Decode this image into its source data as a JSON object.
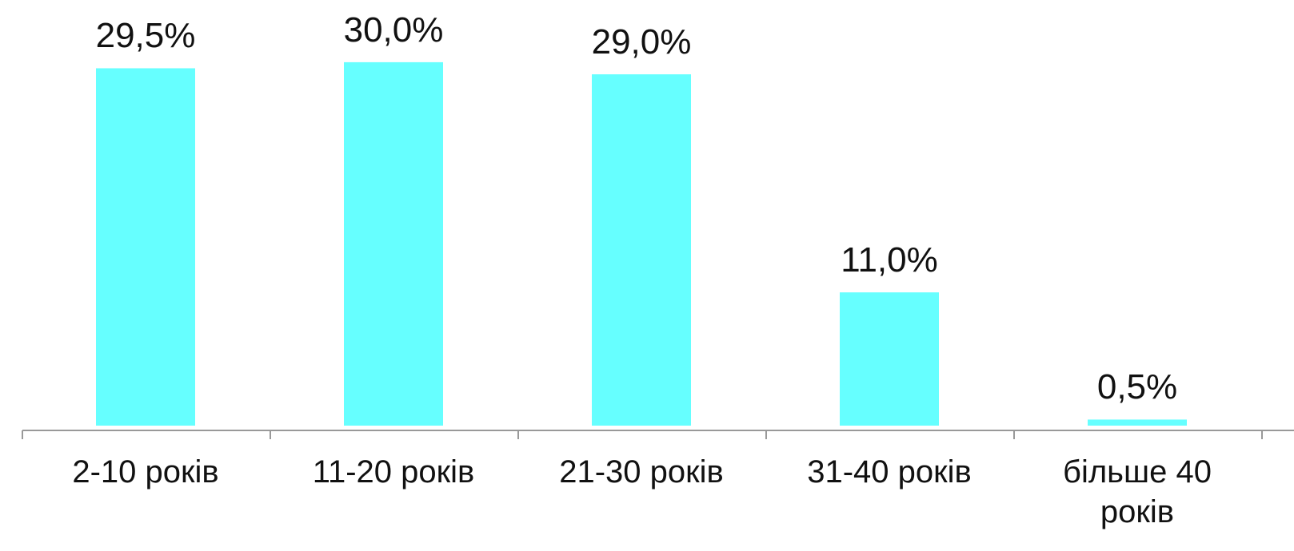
{
  "chart_data": {
    "type": "bar",
    "categories": [
      "2-10 років",
      "11-20 років",
      "21-30 років",
      "31-40 років",
      "більше 40 років"
    ],
    "values": [
      29.5,
      30.0,
      29.0,
      11.0,
      0.5
    ],
    "value_labels": [
      "29,5%",
      "30,0%",
      "29,0%",
      "11,0%",
      "0,5%"
    ],
    "color": "#66ffff"
  }
}
